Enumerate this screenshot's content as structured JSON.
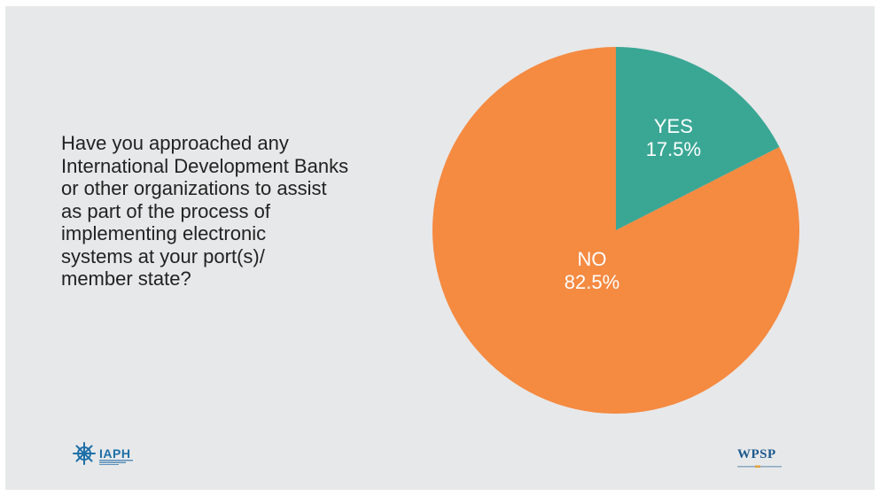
{
  "question": "Have you approached any\nInternational Development Banks\nor other organizations to assist\nas part of the process of\nimplementing electronic\nsystems at your port(s)/\nmember state?",
  "chart_data": {
    "type": "pie",
    "slices": [
      {
        "label": "YES",
        "value": 17.5,
        "display": "17.5%",
        "color": "#3aa795"
      },
      {
        "label": "NO",
        "value": 82.5,
        "display": "82.5%",
        "color": "#f58a41"
      }
    ],
    "start_angle_deg": 0,
    "direction": "clockwise"
  },
  "logos": {
    "left": {
      "text": "IAPH",
      "icon": "ship-wheel-icon",
      "color": "#1d6fa8"
    },
    "right": {
      "text": "WPSP",
      "color": "#1d5a8e"
    }
  }
}
